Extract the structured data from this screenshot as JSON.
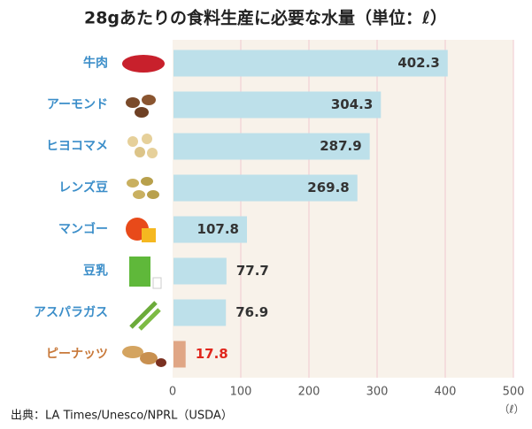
{
  "chart_data": {
    "type": "barh",
    "title": "28gあたりの食料生産に必要な水量（単位：ℓ）",
    "categories": [
      "牛肉",
      "アーモンド",
      "ヒヨコマメ",
      "レンズ豆",
      "マンゴー",
      "豆乳",
      "アスパラガス",
      "ピーナッツ"
    ],
    "values": [
      402.3,
      304.3,
      287.9,
      269.8,
      107.8,
      77.7,
      76.9,
      17.8
    ],
    "colors": [
      "#bde0ea",
      "#bde0ea",
      "#bde0ea",
      "#bde0ea",
      "#bde0ea",
      "#bde0ea",
      "#bde0ea",
      "#e0a685"
    ],
    "label_colors": [
      "#3b8ec9",
      "#3b8ec9",
      "#3b8ec9",
      "#3b8ec9",
      "#3b8ec9",
      "#3b8ec9",
      "#3b8ec9",
      "#c8793a"
    ],
    "value_label_colors": [
      "#333333",
      "#333333",
      "#333333",
      "#333333",
      "#333333",
      "#333333",
      "#333333",
      "#e0261c"
    ],
    "xlim": [
      0,
      500
    ],
    "xticks": [
      0,
      100,
      200,
      300,
      400,
      500
    ],
    "xlabel": "（ℓ）",
    "grid": true,
    "source": "出典：LA Times/Unesco/NPRL（USDA）"
  }
}
